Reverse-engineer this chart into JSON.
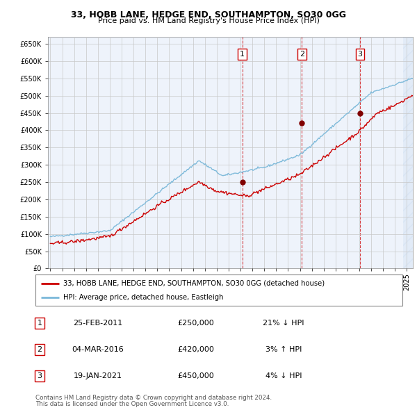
{
  "title1": "33, HOBB LANE, HEDGE END, SOUTHAMPTON, SO30 0GG",
  "title2": "Price paid vs. HM Land Registry's House Price Index (HPI)",
  "ylim": [
    0,
    670000
  ],
  "yticks": [
    0,
    50000,
    100000,
    150000,
    200000,
    250000,
    300000,
    350000,
    400000,
    450000,
    500000,
    550000,
    600000,
    650000
  ],
  "ytick_labels": [
    "£0",
    "£50K",
    "£100K",
    "£150K",
    "£200K",
    "£250K",
    "£300K",
    "£350K",
    "£400K",
    "£450K",
    "£500K",
    "£550K",
    "£600K",
    "£650K"
  ],
  "hpi_color": "#7ab8d9",
  "price_color": "#cc0000",
  "marker_color": "#800000",
  "vline_color": "#cc0000",
  "bg_color": "#eef3fb",
  "grid_color": "#c8c8c8",
  "transactions": [
    {
      "date": 2011.15,
      "price": 250000,
      "label": "1"
    },
    {
      "date": 2016.17,
      "price": 420000,
      "label": "2"
    },
    {
      "date": 2021.05,
      "price": 450000,
      "label": "3"
    }
  ],
  "legend_label1": "33, HOBB LANE, HEDGE END, SOUTHAMPTON, SO30 0GG (detached house)",
  "legend_label2": "HPI: Average price, detached house, Eastleigh",
  "table_data": [
    {
      "num": "1",
      "date": "25-FEB-2011",
      "price": "£250,000",
      "hpi": "21% ↓ HPI"
    },
    {
      "num": "2",
      "date": "04-MAR-2016",
      "price": "£420,000",
      "hpi": "3% ↑ HPI"
    },
    {
      "num": "3",
      "date": "19-JAN-2021",
      "price": "£450,000",
      "hpi": "4% ↓ HPI"
    }
  ],
  "footnote1": "Contains HM Land Registry data © Crown copyright and database right 2024.",
  "footnote2": "This data is licensed under the Open Government Licence v3.0.",
  "xmin": 1994.8,
  "xmax": 2025.5,
  "xticks": [
    1995,
    1996,
    1997,
    1998,
    1999,
    2000,
    2001,
    2002,
    2003,
    2004,
    2005,
    2006,
    2007,
    2008,
    2009,
    2010,
    2011,
    2012,
    2013,
    2014,
    2015,
    2016,
    2017,
    2018,
    2019,
    2020,
    2021,
    2022,
    2023,
    2024,
    2025
  ]
}
